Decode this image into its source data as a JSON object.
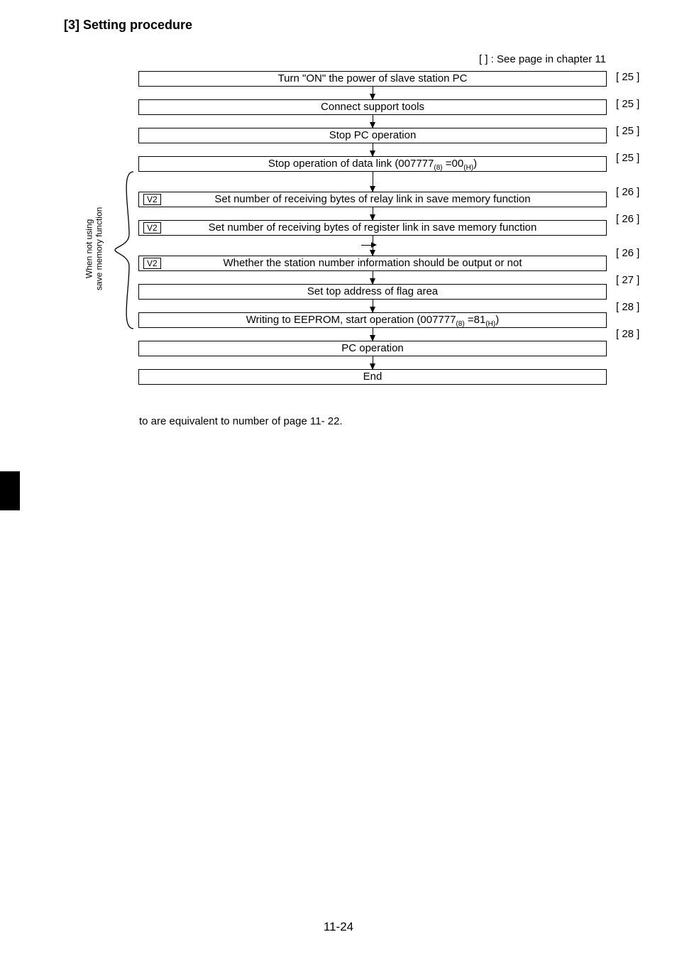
{
  "heading": "[3] Setting procedure",
  "topNote": "[     ] : See page in chapter 11",
  "sideLabel": "When not using\nsave memory function",
  "steps": [
    {
      "text": "Turn \"ON\" the power of slave station PC",
      "tag": null,
      "page": "[ 25 ]"
    },
    {
      "text": "Connect support tools",
      "tag": null,
      "page": "[ 25 ]"
    },
    {
      "text": "Stop PC operation",
      "tag": null,
      "page": "[ 25 ]"
    },
    {
      "text": "Stop operation of data link (007777(8) =00(H))",
      "tag": null,
      "page": "[ 25 ]",
      "sub": true
    },
    {
      "text": "Set number of receiving bytes of relay link in save memory function",
      "tag": "V2",
      "page": "[ 26 ]"
    },
    {
      "text": "Set number of receiving bytes of register link in save memory  function",
      "tag": "V2",
      "page": "[ 26 ]"
    },
    {
      "text": "Whether the station number information should be output or not",
      "tag": "V2",
      "page": "[ 26 ]"
    },
    {
      "text": "Set top address of flag area",
      "tag": null,
      "page": "[ 27 ]"
    },
    {
      "text": "Writing to EEPROM, start operation (007777(8) =81(H))",
      "tag": null,
      "page": "[ 28 ]",
      "sub": true
    },
    {
      "text": "PC operation",
      "tag": null,
      "page": "[ 28 ]"
    },
    {
      "text": "End",
      "tag": null,
      "page": null
    }
  ],
  "footnote": "  to     are equivalent to number of page 11- 22.",
  "footer": "11-24",
  "layout": {
    "boxHeight": 20,
    "gapShort": 18,
    "gapBeforeGroup": 28,
    "gapAfterGroup": 28,
    "pxToBoxBaselineOffset": 0
  }
}
